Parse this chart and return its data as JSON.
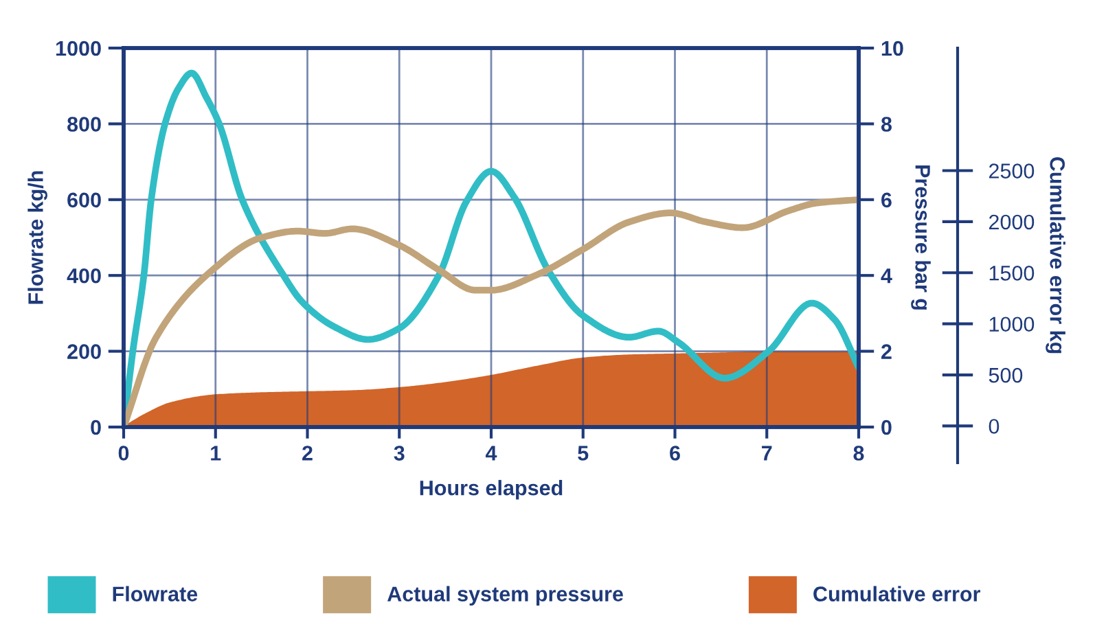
{
  "chart_data": {
    "type": "line",
    "xlabel": "Hours elapsed",
    "ylabel": "Flowrate kg/h",
    "y2label": "Pressure bar g",
    "y3label": "Cumulative error kg",
    "xlim": [
      0,
      8
    ],
    "xticks": [
      0,
      1,
      2,
      3,
      4,
      5,
      6,
      7,
      8
    ],
    "ylim": [
      0,
      1000
    ],
    "yticks": [
      0,
      200,
      400,
      600,
      800,
      1000
    ],
    "y2lim": [
      0,
      10
    ],
    "y2ticks": [
      0,
      2,
      4,
      6,
      8,
      10
    ],
    "y3lim": [
      -360,
      3700
    ],
    "y3ticks": [
      0,
      500,
      1000,
      1500,
      2000,
      2500
    ],
    "grid": true,
    "legend": "bottom",
    "series": [
      {
        "name": "Cumulative error",
        "type": "area",
        "axis": "y3",
        "color": "#d2652a",
        "x": [
          0,
          0.25,
          0.5,
          1,
          1.5,
          2,
          2.5,
          3,
          3.5,
          4,
          4.5,
          5,
          5.5,
          6,
          6.5,
          7,
          7.5,
          8
        ],
        "values": [
          0,
          130,
          230,
          310,
          330,
          340,
          350,
          380,
          430,
          500,
          590,
          670,
          700,
          710,
          720,
          730,
          730,
          730
        ]
      },
      {
        "name": "Flowrate",
        "color": "#31bdc6",
        "x": [
          0,
          0.1,
          0.22,
          0.3,
          0.45,
          0.6,
          0.74,
          0.9,
          1.04,
          1.29,
          1.74,
          1.94,
          2.29,
          2.66,
          2.99,
          3.43,
          3.73,
          4.0,
          4.25,
          4.62,
          5.0,
          5.5,
          5.82,
          6.04,
          6.54,
          7.02,
          7.49,
          7.74,
          8.0
        ],
        "values": [
          0,
          200,
          400,
          600,
          800,
          895,
          934,
          870,
          800,
          600,
          400,
          331,
          265,
          231,
          259,
          400,
          595,
          675,
          607,
          414,
          294,
          237,
          253,
          223,
          129,
          200,
          327,
          283,
          157
        ]
      },
      {
        "name": "Actual system pressure",
        "axis": "y2",
        "color": "#c2a47a",
        "x": [
          0,
          0.35,
          0.97,
          1.49,
          1.89,
          2.19,
          2.49,
          2.99,
          3.43,
          3.83,
          4.0,
          4.5,
          5.0,
          5.5,
          5.95,
          6.34,
          6.74,
          7.24,
          7.54,
          8.0
        ],
        "values": [
          0,
          2.35,
          4.15,
          4.99,
          5.17,
          5.11,
          5.23,
          4.81,
          4.15,
          3.61,
          3.61,
          4.02,
          4.69,
          5.41,
          5.65,
          5.41,
          5.26,
          5.71,
          5.91,
          6.0
        ]
      }
    ]
  }
}
